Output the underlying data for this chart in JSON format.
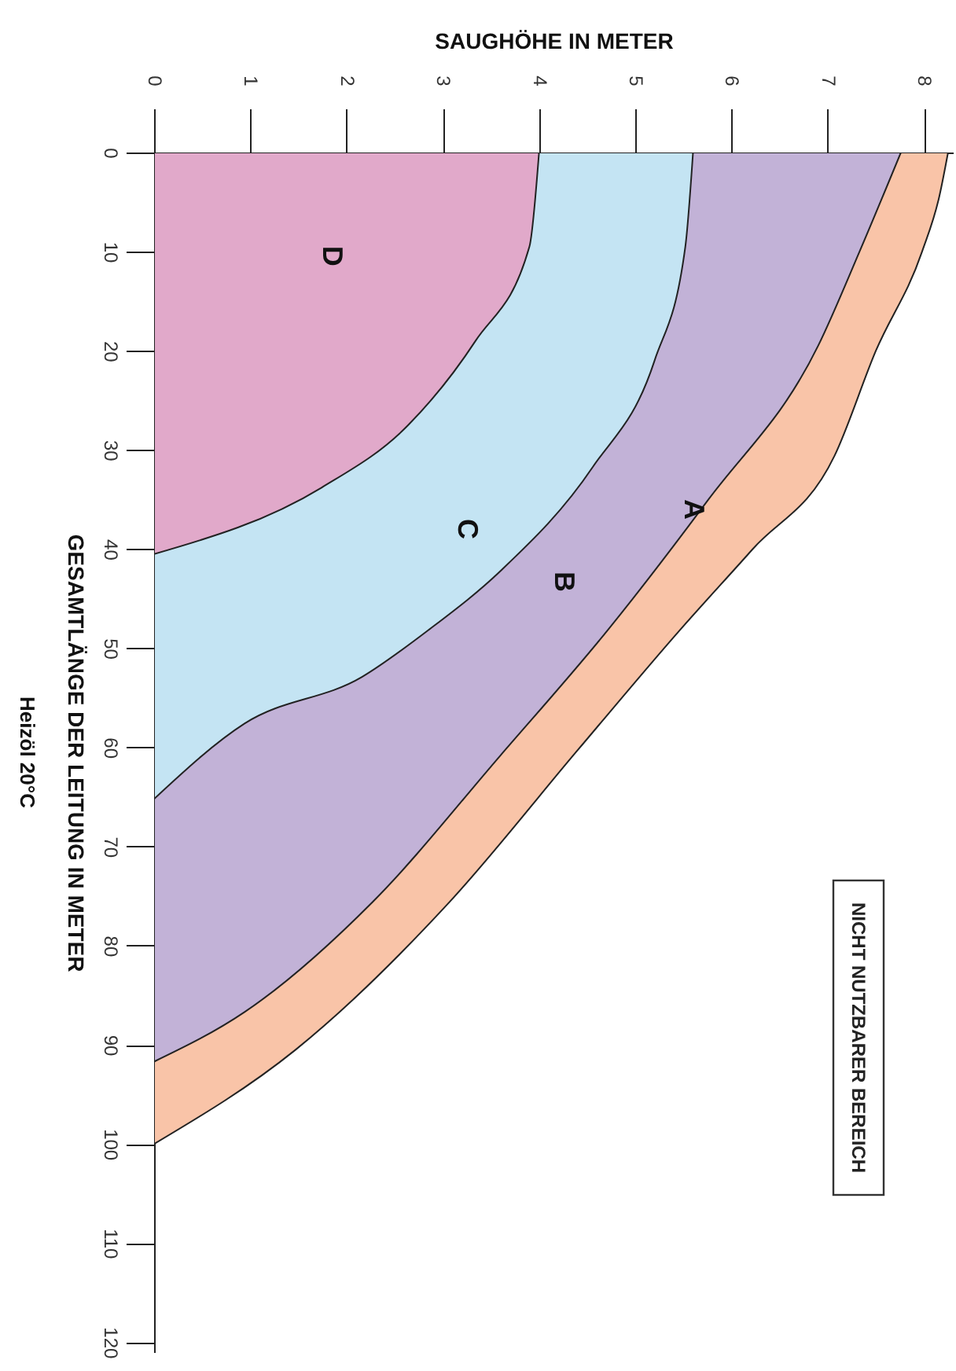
{
  "chart_data": {
    "type": "area",
    "xlabel": "SAUGHÖHE IN METER",
    "ylabel": "GESAMTLÄNGE DER LEITUNG IN METER",
    "subtitle": "Heizöl 20°C",
    "series": [
      {
        "name": "A",
        "color": "#f9c4a8",
        "x": [
          0,
          1.47,
          3.07,
          4.4,
          5.47,
          6.22,
          7.07,
          7.5,
          7.98,
          8.16,
          8.25
        ],
        "values": [
          100,
          90.5,
          75.6,
          60.3,
          48.1,
          40,
          30.6,
          20,
          10,
          4.4,
          0
        ]
      },
      {
        "name": "B",
        "color": "#c2b2d7",
        "x": [
          0,
          0.94,
          2.27,
          3.6,
          4.72,
          5.76,
          6.9,
          7.33,
          7.76
        ],
        "values": [
          91.7,
          86.7,
          75.6,
          60.8,
          48.1,
          35,
          19.5,
          10,
          0
        ]
      },
      {
        "name": "C",
        "color": "#c4e4f3",
        "x": [
          0,
          0.94,
          2.16,
          2.86,
          3.6,
          4.56,
          5.2,
          5.52,
          5.6
        ],
        "values": [
          65.2,
          57.6,
          52.9,
          48.1,
          42.2,
          31.7,
          21,
          9.5,
          0
        ]
      },
      {
        "name": "D",
        "color": "#e1a9ca",
        "x": [
          0,
          1.74,
          2.64,
          3.34,
          3.9,
          4.0
        ],
        "values": [
          40.5,
          33.8,
          27.5,
          19,
          9.5,
          0
        ]
      }
    ],
    "xlim": [
      0,
      8.3
    ],
    "xticks": [
      0,
      1,
      2,
      3,
      4,
      5,
      6,
      7,
      8
    ],
    "ylim": [
      121,
      0
    ],
    "yticks": [
      0,
      10,
      20,
      30,
      40,
      50,
      60,
      70,
      80,
      90,
      100,
      110,
      120
    ],
    "annotations": [
      "NICHT NUTZBARER BEREICH"
    ]
  }
}
